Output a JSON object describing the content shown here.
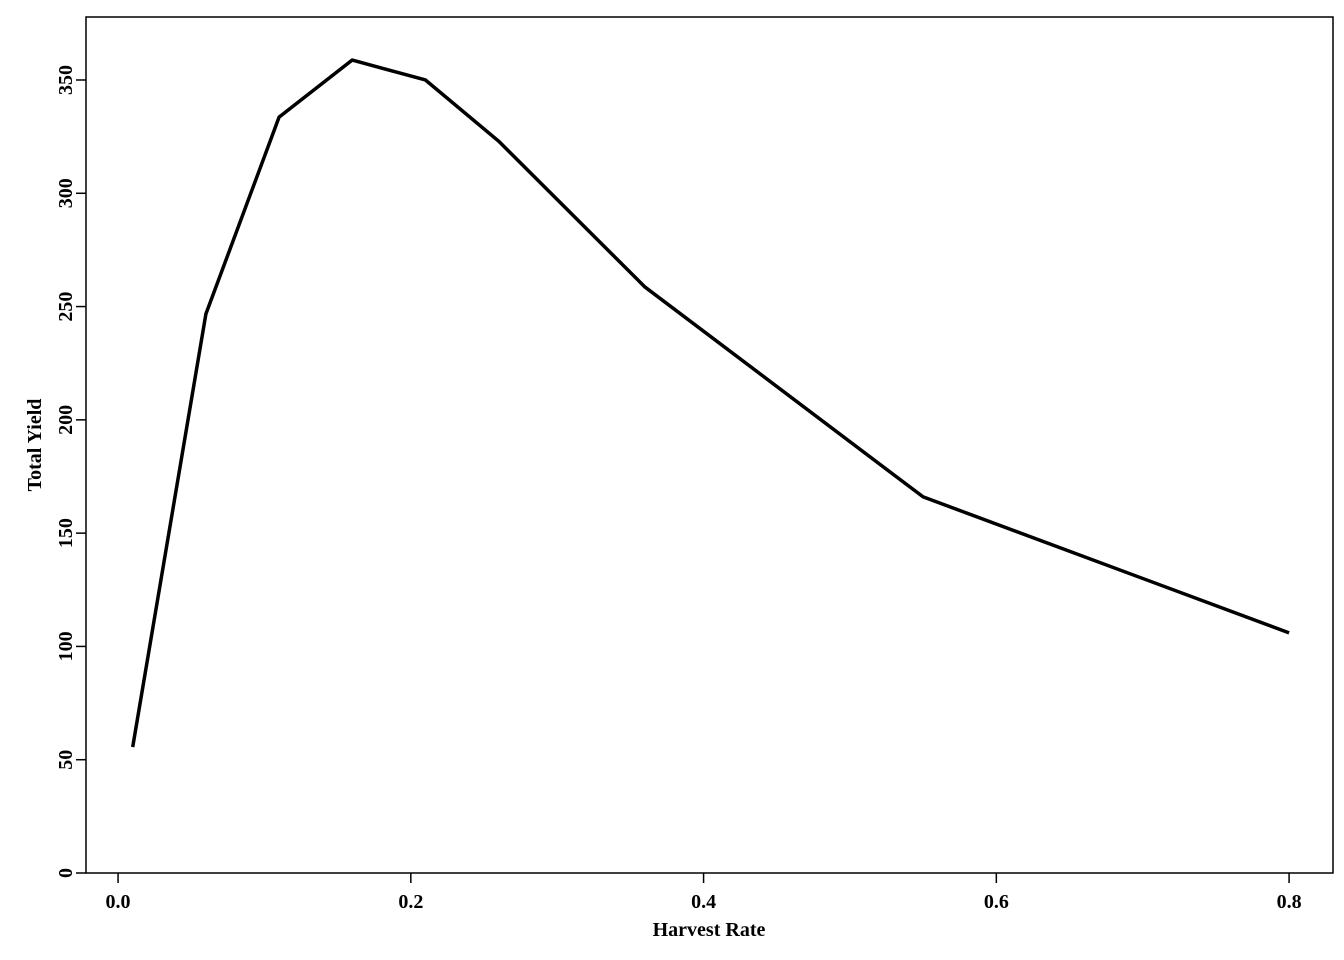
{
  "chart_data": {
    "type": "line",
    "x_label": "Harvest Rate",
    "y_label": "Total Yield",
    "x": [
      0.01,
      0.06,
      0.11,
      0.16,
      0.21,
      0.26,
      0.36,
      0.55,
      0.8
    ],
    "series": [
      {
        "color": "#000000",
        "values": [
          55.6,
          246.7,
          333.6,
          358.8,
          350,
          323,
          258.6,
          166,
          106
        ]
      }
    ],
    "xlim": [
      -0.0219,
      0.83
    ],
    "ylim": [
      0,
      377.8
    ],
    "xticks": [
      {
        "value": 0,
        "label": "0.0"
      },
      0.2,
      0.4,
      0.6,
      0.8
    ],
    "yticks": [
      0,
      50,
      100,
      150,
      200,
      250,
      300,
      350
    ],
    "grid": false
  }
}
